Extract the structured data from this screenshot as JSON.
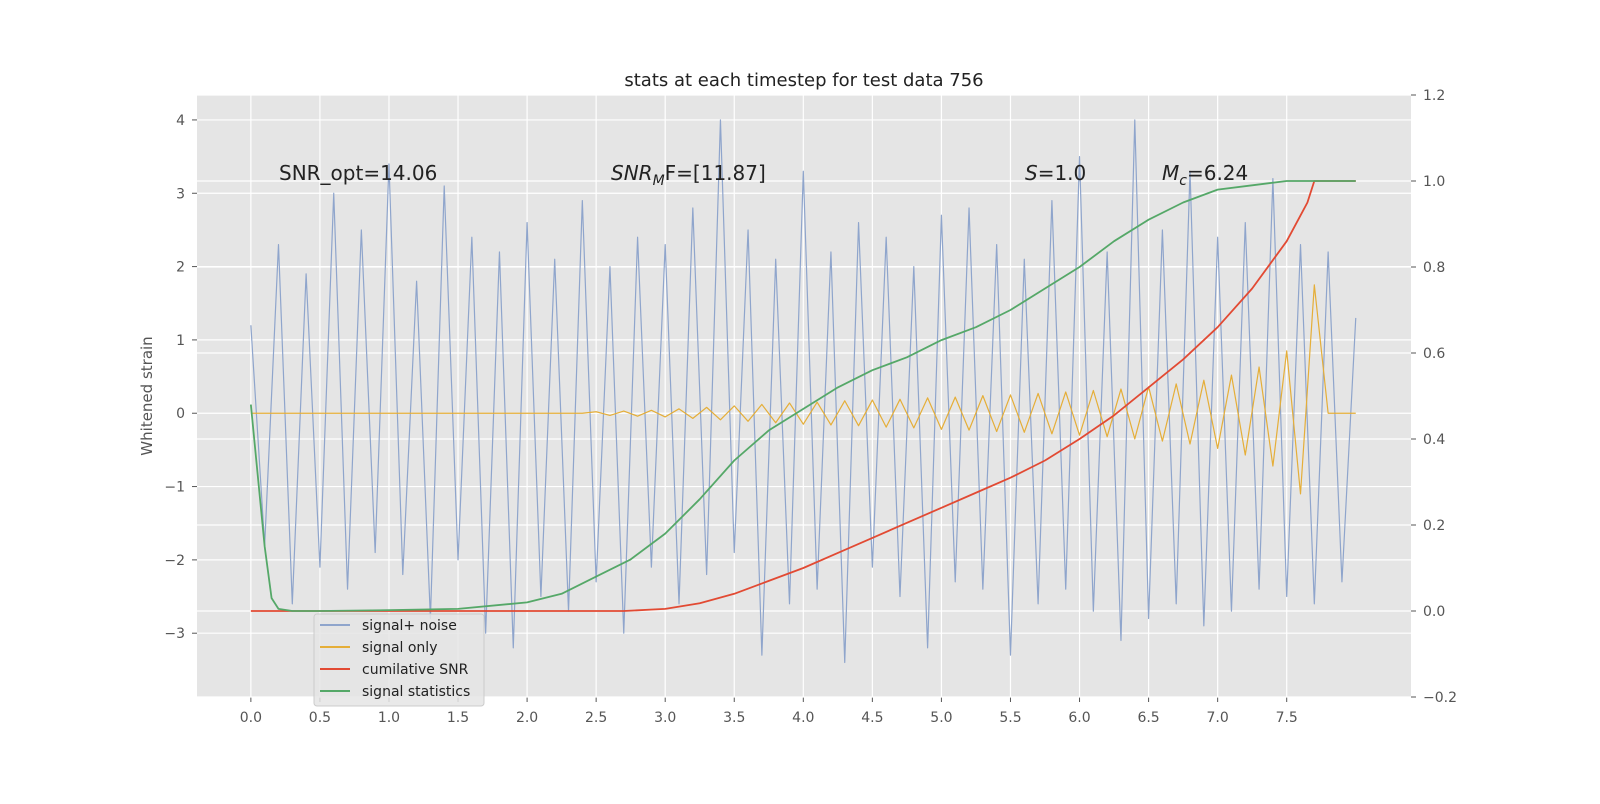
{
  "chart_data": {
    "type": "line",
    "title": "stats at each timestep for test data 756",
    "ylabel": "Whitened strain",
    "annotations": [
      {
        "text": "SNR_opt=14.06"
      },
      {
        "text": "SNR",
        "sub": "M",
        "after": "F=[11.87]"
      },
      {
        "text": "S",
        "after": "=1.0"
      },
      {
        "text": "M",
        "sub": "c",
        "after": "=6.24"
      }
    ],
    "xlim": [
      -0.39,
      8.4
    ],
    "ylim": [
      -3.87,
      4.34
    ],
    "y2lim": [
      -0.2,
      1.2
    ],
    "xticks": [
      {
        "value": 0,
        "label": "0.0"
      },
      {
        "value": 0.5,
        "label": "0.5"
      },
      {
        "value": 1,
        "label": "1.0"
      },
      {
        "value": 1.5,
        "label": "1.5"
      },
      {
        "value": 2,
        "label": "2.0"
      },
      {
        "value": 2.5,
        "label": "2.5"
      },
      {
        "value": 3,
        "label": "3.0"
      },
      {
        "value": 3.5,
        "label": "3.5"
      },
      {
        "value": 4,
        "label": "4.0"
      },
      {
        "value": 4.5,
        "label": "4.5"
      },
      {
        "value": 5,
        "label": "5.0"
      },
      {
        "value": 5.5,
        "label": "5.5"
      },
      {
        "value": 6,
        "label": "6.0"
      },
      {
        "value": 6.5,
        "label": "6.5"
      },
      {
        "value": 7,
        "label": "7.0"
      },
      {
        "value": 7.5,
        "label": "7.5"
      }
    ],
    "yticks": [
      {
        "value": -3,
        "label": "−3"
      },
      {
        "value": -2,
        "label": "−2"
      },
      {
        "value": -1,
        "label": "−1"
      },
      0,
      1,
      2,
      3,
      4
    ],
    "y2ticks": [
      {
        "value": -0.2,
        "label": "−0.2"
      },
      {
        "value": 0,
        "label": "0.0"
      },
      {
        "value": 0.2,
        "label": "0.2"
      },
      {
        "value": 0.4,
        "label": "0.4"
      },
      {
        "value": 0.6,
        "label": "0.6"
      },
      {
        "value": 0.8,
        "label": "0.8"
      },
      {
        "value": 1,
        "label": "1.0"
      },
      {
        "value": 1.2,
        "label": "1.2"
      }
    ],
    "grid": true,
    "legend": "lower left",
    "series": [
      {
        "name": "signal+ noise",
        "color": "#8fa5cc",
        "x": [
          0,
          0.1,
          0.2,
          0.3,
          0.4,
          0.5,
          0.6,
          0.7,
          0.8,
          0.9,
          1,
          1.1,
          1.2,
          1.3,
          1.4,
          1.5,
          1.6,
          1.7,
          1.8,
          1.9,
          2,
          2.1,
          2.2,
          2.3,
          2.4,
          2.5,
          2.6,
          2.7,
          2.8,
          2.9,
          3,
          3.1,
          3.2,
          3.3,
          3.4,
          3.5,
          3.6,
          3.7,
          3.8,
          3.9,
          4,
          4.1,
          4.2,
          4.3,
          4.4,
          4.5,
          4.6,
          4.7,
          4.8,
          4.9,
          5,
          5.1,
          5.2,
          5.3,
          5.4,
          5.5,
          5.6,
          5.7,
          5.8,
          5.9,
          6,
          6.1,
          6.2,
          6.3,
          6.4,
          6.5,
          6.6,
          6.7,
          6.8,
          6.9,
          7,
          7.1,
          7.2,
          7.3,
          7.4,
          7.5,
          7.6,
          7.7,
          7.8,
          7.9,
          8
        ],
        "values": [
          1.2,
          -1.8,
          2.3,
          -2.6,
          1.9,
          -2.1,
          3.0,
          -2.4,
          2.5,
          -1.9,
          3.4,
          -2.2,
          1.8,
          -2.8,
          3.1,
          -2.0,
          2.4,
          -3.0,
          2.2,
          -3.2,
          2.6,
          -2.5,
          2.1,
          -2.7,
          2.9,
          -2.3,
          2.0,
          -3.0,
          2.4,
          -2.1,
          2.3,
          -2.6,
          2.8,
          -2.2,
          4.0,
          -1.9,
          2.5,
          -3.3,
          2.1,
          -2.6,
          3.3,
          -2.4,
          2.2,
          -3.4,
          2.6,
          -2.1,
          2.4,
          -2.5,
          2.0,
          -3.2,
          2.7,
          -2.3,
          2.8,
          -2.4,
          2.3,
          -3.3,
          2.1,
          -2.6,
          2.9,
          -2.4,
          3.5,
          -2.7,
          2.2,
          -3.1,
          4.0,
          -2.8,
          2.5,
          -2.6,
          3.3,
          -2.9,
          2.4,
          -2.7,
          2.6,
          -2.4,
          3.2,
          -2.5,
          2.3,
          -2.6,
          2.2,
          -2.3,
          1.3
        ]
      },
      {
        "name": "signal only",
        "color": "#e5ae38",
        "x": [
          0,
          0.1,
          0.2,
          0.3,
          0.4,
          0.5,
          0.6,
          0.7,
          0.8,
          0.9,
          1,
          1.1,
          1.2,
          1.3,
          1.4,
          1.5,
          1.6,
          1.7,
          1.8,
          1.9,
          2,
          2.1,
          2.2,
          2.3,
          2.4,
          2.5,
          2.6,
          2.7,
          2.8,
          2.9,
          3,
          3.1,
          3.2,
          3.3,
          3.4,
          3.5,
          3.6,
          3.7,
          3.8,
          3.9,
          4,
          4.1,
          4.2,
          4.3,
          4.4,
          4.5,
          4.6,
          4.7,
          4.8,
          4.9,
          5,
          5.1,
          5.2,
          5.3,
          5.4,
          5.5,
          5.6,
          5.7,
          5.8,
          5.9,
          6,
          6.1,
          6.2,
          6.3,
          6.4,
          6.5,
          6.6,
          6.7,
          6.8,
          6.9,
          7,
          7.1,
          7.2,
          7.3,
          7.4,
          7.5,
          7.6,
          7.7,
          7.8,
          7.9,
          8
        ],
        "values": [
          0,
          0,
          0,
          0,
          0,
          0,
          0,
          0,
          0,
          0,
          0,
          0,
          0,
          0,
          0,
          0,
          0,
          0,
          0,
          0,
          0,
          0,
          0,
          0,
          0,
          0.02,
          -0.03,
          0.03,
          -0.04,
          0.04,
          -0.05,
          0.06,
          -0.07,
          0.08,
          -0.09,
          0.1,
          -0.11,
          0.12,
          -0.13,
          0.14,
          -0.15,
          0.15,
          -0.16,
          0.17,
          -0.17,
          0.18,
          -0.19,
          0.19,
          -0.2,
          0.21,
          -0.22,
          0.22,
          -0.23,
          0.24,
          -0.25,
          0.25,
          -0.26,
          0.27,
          -0.28,
          0.29,
          -0.3,
          0.31,
          -0.32,
          0.33,
          -0.35,
          0.36,
          -0.38,
          0.4,
          -0.42,
          0.45,
          -0.48,
          0.52,
          -0.57,
          0.63,
          -0.72,
          0.85,
          -1.1,
          1.75,
          0,
          0,
          0
        ]
      },
      {
        "name": "cumilative SNR",
        "color": "#e24a33",
        "axis": "y2",
        "x": [
          0,
          0.5,
          1,
          1.5,
          2,
          2.5,
          2.7,
          3,
          3.25,
          3.5,
          3.75,
          4,
          4.25,
          4.5,
          4.75,
          5,
          5.25,
          5.5,
          5.75,
          6,
          6.25,
          6.5,
          6.75,
          7,
          7.25,
          7.5,
          7.6,
          7.65,
          7.7,
          8
        ],
        "values": [
          0,
          0,
          0,
          0,
          0,
          0,
          0,
          0.005,
          0.018,
          0.04,
          0.07,
          0.1,
          0.135,
          0.17,
          0.205,
          0.24,
          0.275,
          0.31,
          0.35,
          0.4,
          0.455,
          0.52,
          0.585,
          0.66,
          0.75,
          0.86,
          0.92,
          0.95,
          1.0,
          1.0
        ]
      },
      {
        "name": "signal statistics",
        "color": "#55a868",
        "axis": "y2",
        "x": [
          0,
          0.1,
          0.15,
          0.2,
          0.3,
          0.5,
          1,
          1.5,
          2,
          2.25,
          2.5,
          2.75,
          3,
          3.25,
          3.5,
          3.75,
          4,
          4.25,
          4.5,
          4.75,
          5,
          5.25,
          5.5,
          5.75,
          6,
          6.25,
          6.5,
          6.75,
          7,
          7.25,
          7.5,
          8
        ],
        "values": [
          0.48,
          0.15,
          0.03,
          0.005,
          0,
          0,
          0.002,
          0.005,
          0.02,
          0.04,
          0.08,
          0.12,
          0.18,
          0.26,
          0.35,
          0.42,
          0.47,
          0.52,
          0.56,
          0.59,
          0.63,
          0.66,
          0.7,
          0.75,
          0.8,
          0.86,
          0.91,
          0.95,
          0.98,
          0.99,
          1.0,
          1.0
        ]
      }
    ]
  }
}
